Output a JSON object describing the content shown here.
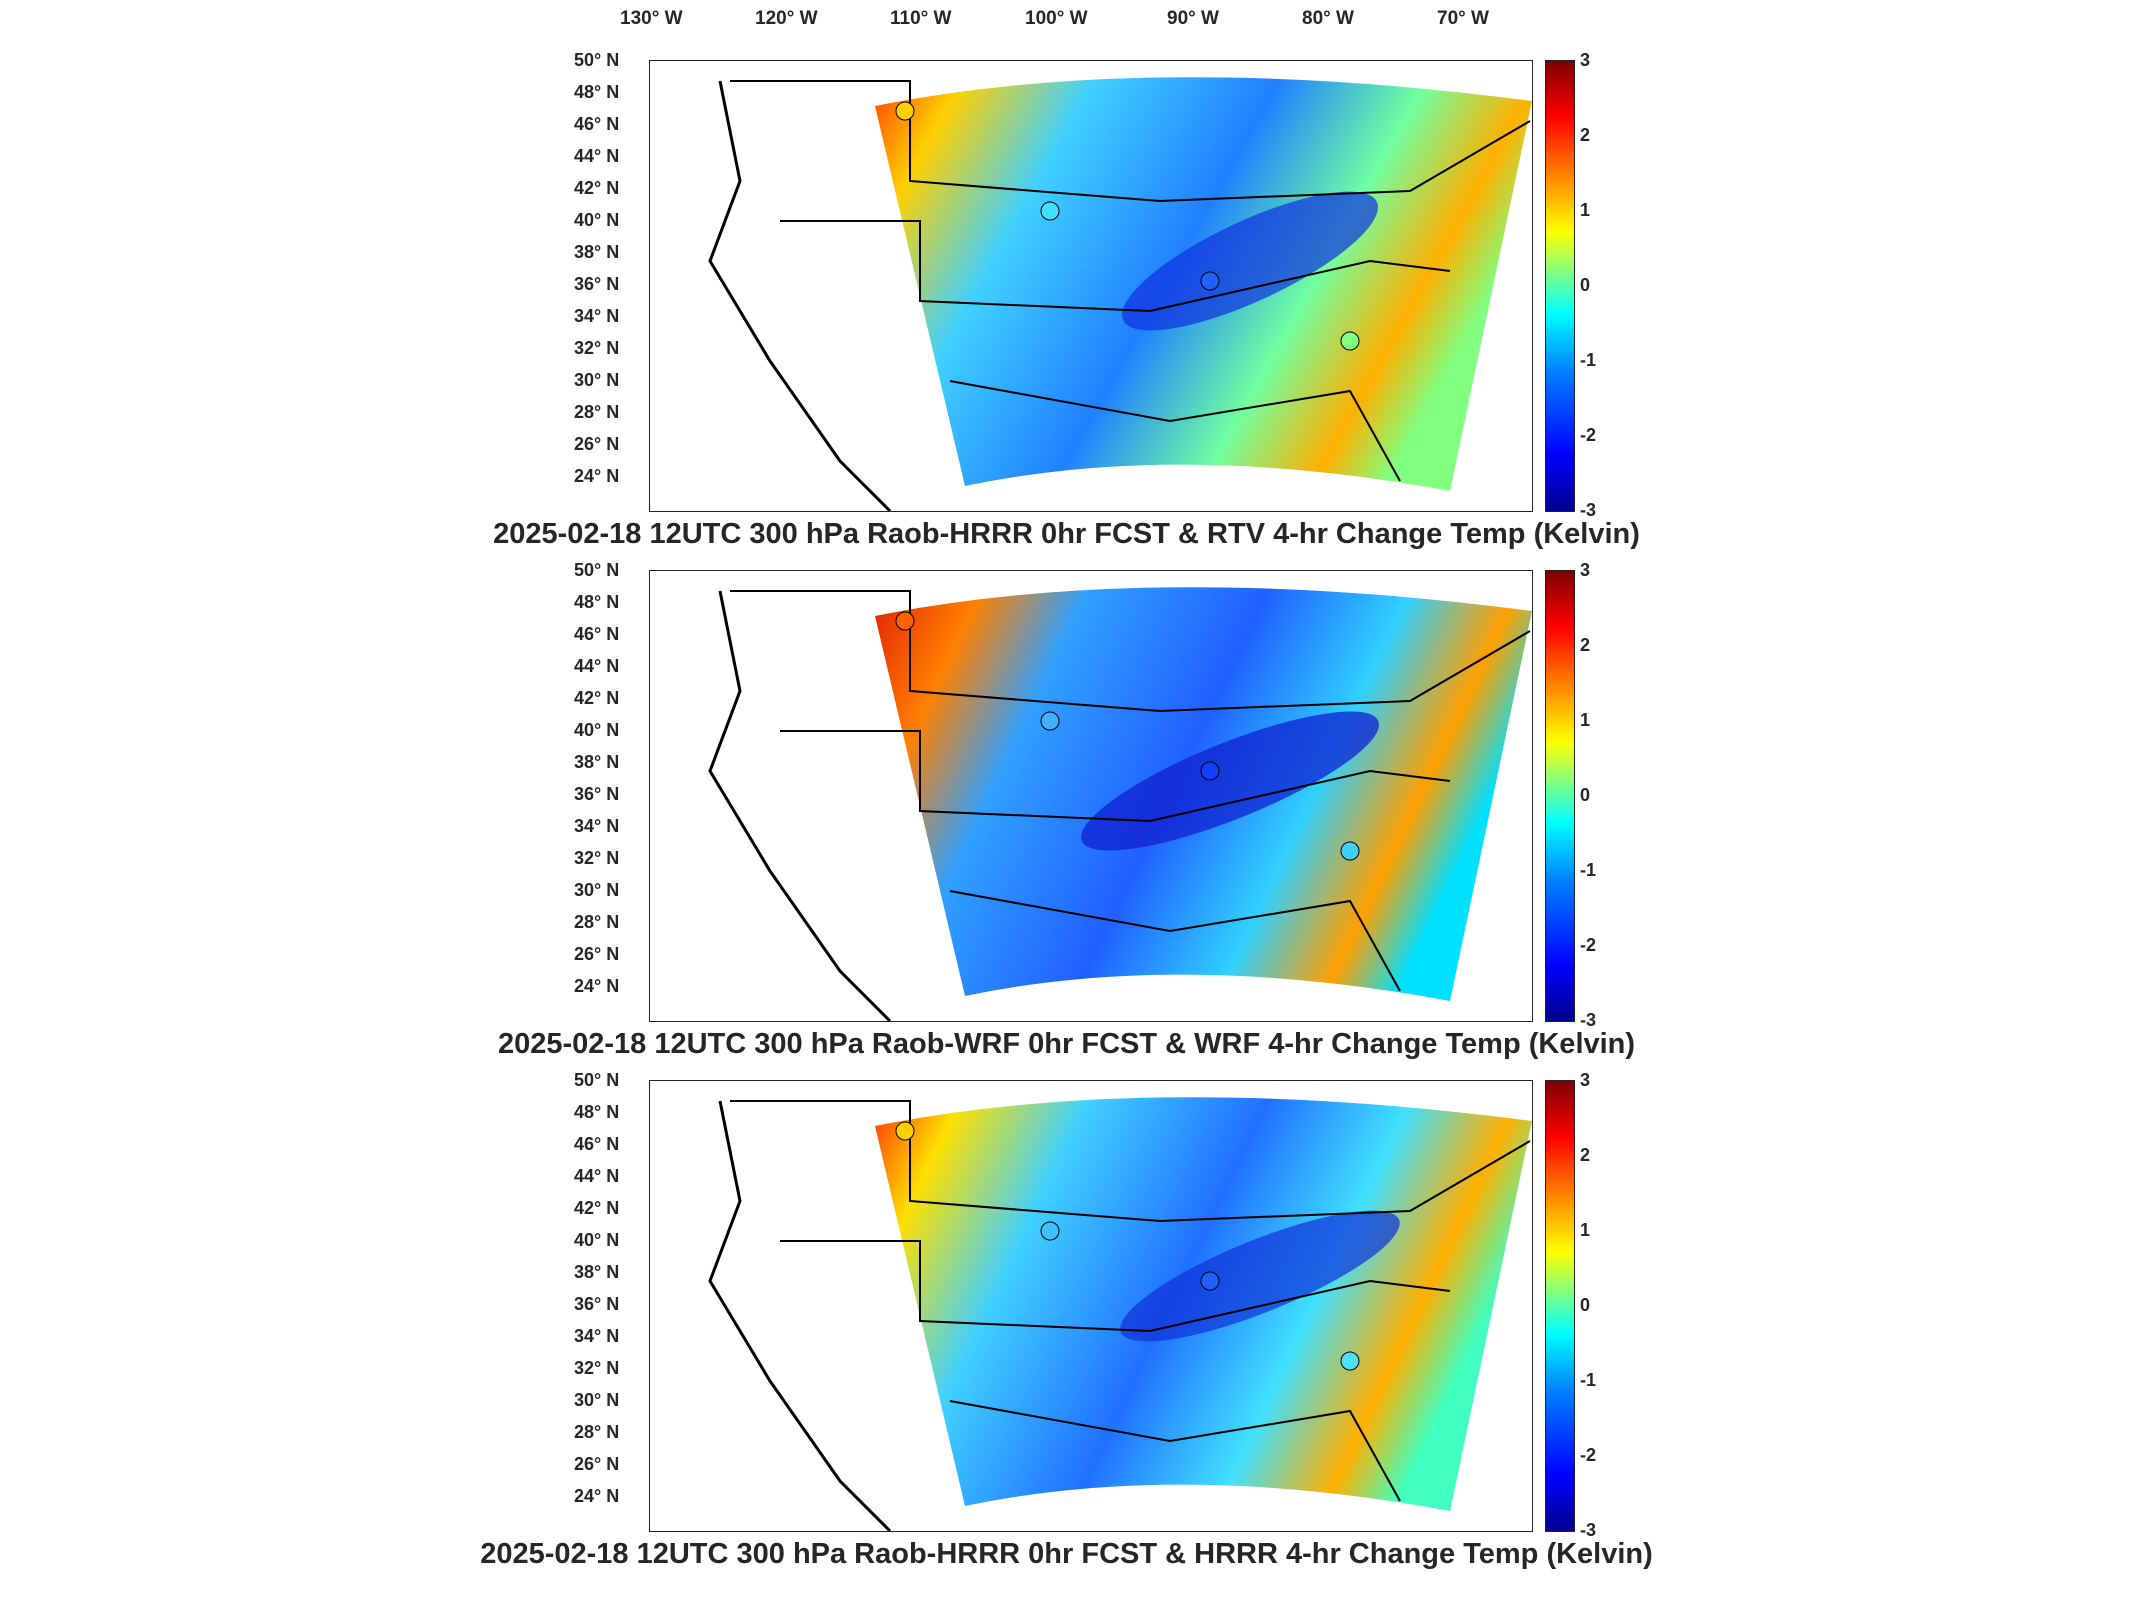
{
  "lon_labels": [
    "130° W",
    "120° W",
    "110° W",
    "100° W",
    "90° W",
    "80° W",
    "70° W"
  ],
  "lat_labels": [
    "50° N",
    "48° N",
    "46° N",
    "44° N",
    "42° N",
    "40° N",
    "38° N",
    "36° N",
    "34° N",
    "32° N",
    "30° N",
    "28° N",
    "26° N",
    "24° N"
  ],
  "colorbar": {
    "ticks": [
      "3",
      "2",
      "1",
      "0",
      "-1",
      "-2",
      "-3"
    ],
    "colormap": "jet",
    "min": -3,
    "max": 3
  },
  "panels": [
    {
      "title": "2025-02-18 12UTC 300 hPa Raob-HRRR 0hr FCST & RTV 4-hr Change Temp (Kelvin)"
    },
    {
      "title": "2025-02-18 12UTC 300 hPa Raob-WRF 0hr FCST & WRF 4-hr Change Temp (Kelvin)"
    },
    {
      "title": "2025-02-18 12UTC 300 hPa Raob-HRRR 0hr FCST & HRRR 4-hr Change Temp (Kelvin)"
    }
  ]
}
